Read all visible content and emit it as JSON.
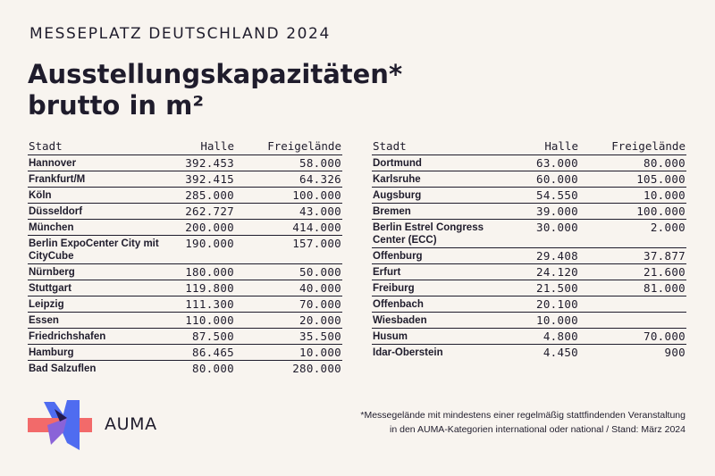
{
  "header": {
    "kicker": "MESSEPLATZ DEUTSCHLAND 2024",
    "title_line1": "Ausstellungskapazitäten*",
    "title_line2": "brutto in m²"
  },
  "columns": {
    "city": "Stadt",
    "hall": "Halle",
    "open": "Freigelände"
  },
  "left_rows": [
    {
      "city": "Hannover",
      "hall": "392.453",
      "open": "58.000"
    },
    {
      "city": "Frankfurt/M",
      "hall": "392.415",
      "open": "64.326"
    },
    {
      "city": "Köln",
      "hall": "285.000",
      "open": "100.000"
    },
    {
      "city": "Düsseldorf",
      "hall": "262.727",
      "open": "43.000"
    },
    {
      "city": "München",
      "hall": "200.000",
      "open": "414.000"
    },
    {
      "city": "Berlin ExpoCenter City mit CityCube",
      "hall": "190.000",
      "open": "157.000"
    },
    {
      "city": "Nürnberg",
      "hall": "180.000",
      "open": "50.000"
    },
    {
      "city": "Stuttgart",
      "hall": "119.800",
      "open": "40.000"
    },
    {
      "city": "Leipzig",
      "hall": "111.300",
      "open": "70.000"
    },
    {
      "city": "Essen",
      "hall": "110.000",
      "open": "20.000"
    },
    {
      "city": "Friedrichshafen",
      "hall": "87.500",
      "open": "35.500"
    },
    {
      "city": "Hamburg",
      "hall": "86.465",
      "open": "10.000"
    },
    {
      "city": "Bad Salzuflen",
      "hall": "80.000",
      "open": "280.000"
    }
  ],
  "right_rows": [
    {
      "city": "Dortmund",
      "hall": "63.000",
      "open": "80.000"
    },
    {
      "city": "Karlsruhe",
      "hall": "60.000",
      "open": "105.000"
    },
    {
      "city": "Augsburg",
      "hall": "54.550",
      "open": "10.000"
    },
    {
      "city": "Bremen",
      "hall": "39.000",
      "open": "100.000"
    },
    {
      "city": "Berlin Estrel Congress Center (ECC)",
      "hall": "30.000",
      "open": "2.000"
    },
    {
      "city": "Offenburg",
      "hall": "29.408",
      "open": "37.877"
    },
    {
      "city": "Erfurt",
      "hall": "24.120",
      "open": "21.600"
    },
    {
      "city": "Freiburg",
      "hall": "21.500",
      "open": "81.000"
    },
    {
      "city": "Offenbach",
      "hall": "20.100",
      "open": ""
    },
    {
      "city": "Wiesbaden",
      "hall": "10.000",
      "open": ""
    },
    {
      "city": "Husum",
      "hall": "4.800",
      "open": "70.000"
    },
    {
      "city": "Idar-Oberstein",
      "hall": "4.450",
      "open": "900"
    }
  ],
  "brand": {
    "name": "AUMA",
    "logo_icon": "auma-logo-icon",
    "colors": {
      "dark": "#231a4d",
      "blue": "#4f6cf0",
      "red": "#f26a6a",
      "purple": "#8a63d8"
    }
  },
  "footnote": {
    "line1": "*Messegelände mit mindestens einer regelmäßig stattfindenden Veranstaltung",
    "line2": "in den AUMA-Kategorien international oder national / Stand: März 2024"
  }
}
